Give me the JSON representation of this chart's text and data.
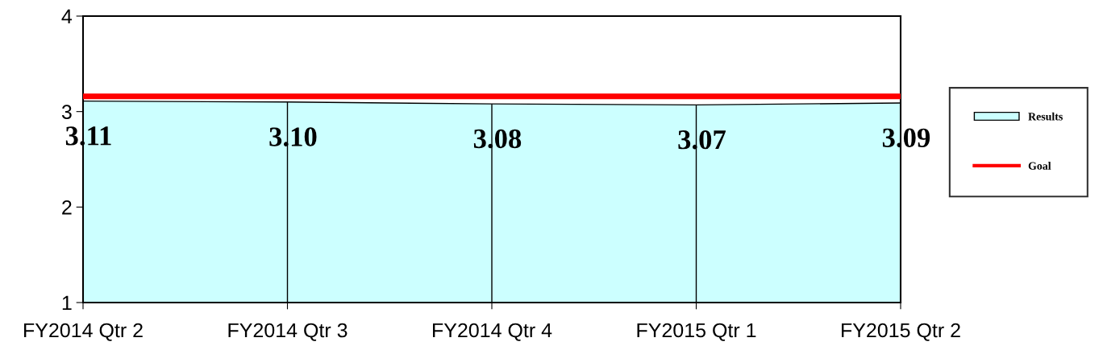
{
  "chart_data": {
    "type": "area",
    "categories": [
      "FY2014 Qtr 2",
      "FY2014 Qtr 3",
      "FY2014 Qtr 4",
      "FY2015 Qtr 1",
      "FY2015 Qtr 2"
    ],
    "series": [
      {
        "name": "Results",
        "color": "#ccffff",
        "values": [
          3.11,
          3.1,
          3.08,
          3.07,
          3.09
        ],
        "value_labels": [
          "3.11",
          "3.10",
          "3.08",
          "3.07",
          "3.09"
        ]
      },
      {
        "name": "Goal",
        "type": "line",
        "color": "#ff0000",
        "values": [
          3.16,
          3.16,
          3.16,
          3.16,
          3.16
        ]
      }
    ],
    "ylim": [
      1,
      4
    ],
    "yticks": [
      1,
      2,
      3,
      4
    ],
    "grid": "x",
    "legend": "right"
  }
}
